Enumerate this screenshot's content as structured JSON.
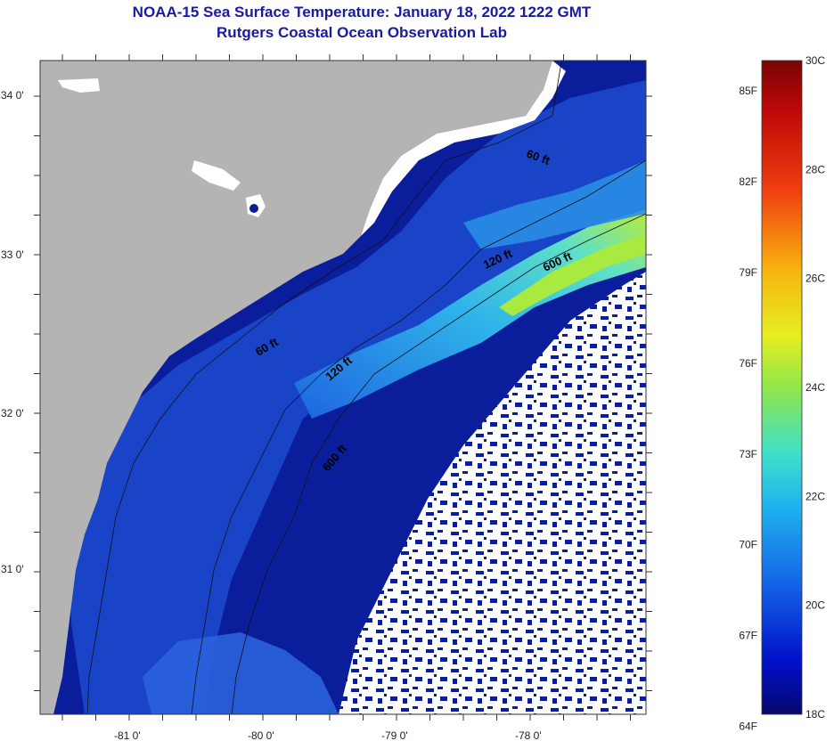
{
  "title": {
    "line1": "NOAA-15 Sea Surface Temperature:  January 18, 2022 1222 GMT",
    "line2": "Rutgers Coastal Ocean Observation Lab"
  },
  "map": {
    "lon_labels": [
      "-81 0'",
      "-80 0'",
      "-79 0'",
      "-78 0'"
    ],
    "lat_labels": [
      "34 0'",
      "33 0'",
      "32 0'",
      "31 0'"
    ],
    "contour_labels": [
      "60 ft",
      "120 ft",
      "600 ft",
      "60 ft",
      "120 ft",
      "600 ft"
    ],
    "colors": {
      "land": "#b4b4b4",
      "cloud": "#ffffff",
      "cold_water": "#0a1e9c",
      "mid_water": "#1450d8",
      "gulf_stream": "#3cc8ee",
      "warm_core": "#8ee05a"
    }
  },
  "colorbar": {
    "fahrenheit_labels": [
      "85F",
      "82F",
      "79F",
      "76F",
      "73F",
      "70F",
      "67F",
      "64F"
    ],
    "celsius_labels": [
      "30C",
      "28C",
      "26C",
      "24C",
      "22C",
      "20C",
      "18C"
    ],
    "min_c": 18,
    "max_c": 30
  }
}
